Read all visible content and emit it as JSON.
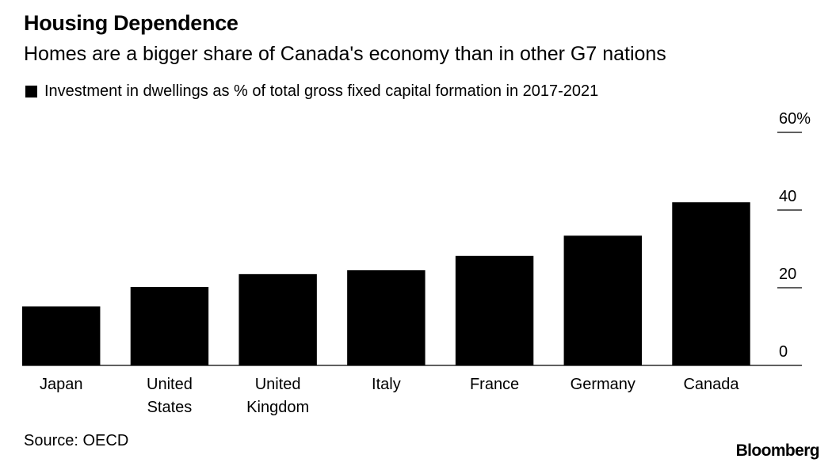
{
  "header": {
    "title": "Housing Dependence",
    "subtitle": "Homes are a bigger share of Canada's economy than in other G7 nations"
  },
  "legend": {
    "label": "Investment in dwellings as % of total gross fixed capital formation in 2017-2021",
    "color": "#000000"
  },
  "footer": {
    "source": "Source: OECD",
    "brand": "Bloomberg"
  },
  "chart_data": {
    "type": "bar",
    "categories": [
      [
        "Japan"
      ],
      [
        "United",
        "States"
      ],
      [
        "United",
        "Kingdom"
      ],
      [
        "Italy"
      ],
      [
        "France"
      ],
      [
        "Germany"
      ],
      [
        "Canada"
      ]
    ],
    "series": [
      {
        "name": "Investment in dwellings as % of total gross fixed capital formation in 2017-2021",
        "values": [
          15.2,
          20.2,
          23.5,
          24.5,
          28.2,
          33.4,
          42.0
        ],
        "color": "#000000"
      }
    ],
    "yticks": [
      "0",
      "20",
      "40",
      "60%"
    ],
    "ytick_values": [
      0,
      20,
      40,
      60
    ],
    "ylim": [
      0,
      60
    ],
    "axis_position": "right",
    "grid": false
  }
}
